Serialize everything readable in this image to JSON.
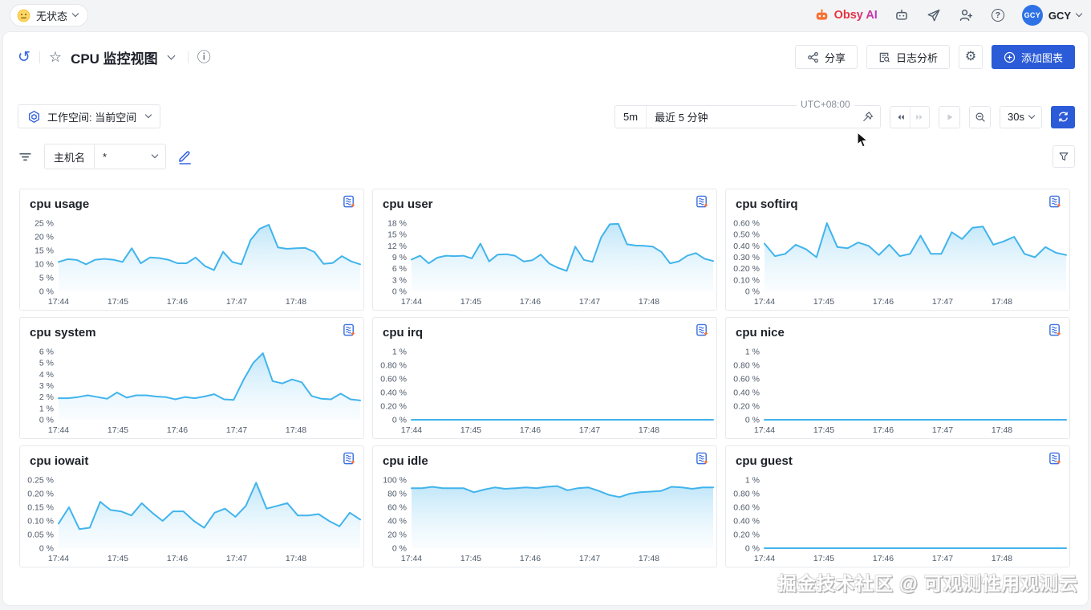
{
  "topbar": {
    "status_label": "无状态",
    "obsy_label": "Obsy AI",
    "avatar_text": "GCY",
    "username": "GCY"
  },
  "header": {
    "title": "CPU 监控视图",
    "share_label": "分享",
    "log_label": "日志分析",
    "add_chart_label": "添加图表",
    "workspace_label": "工作空间: 当前空间",
    "timezone": "UTC+08:00",
    "range_badge": "5m",
    "range_label": "最近 5 分钟",
    "interval_label": "30s"
  },
  "filter": {
    "field_label": "主机名",
    "field_value": "*"
  },
  "watermark": "掘金技术社区 @ 可观测性用观测云",
  "icons": {
    "back": "↺",
    "star": "☆",
    "info": "ⓘ",
    "gear": "⚙",
    "help": "?"
  },
  "colors": {
    "accent": "#2b5bd7",
    "line": "#41b4ec",
    "area_top": "#8ed2f4",
    "area_bottom": "#eaf7fd",
    "avatar_bg": "#2e72e5",
    "icon_gray": "#4e5969",
    "border": "#e5e6eb",
    "tick": "#4e5969"
  },
  "chart_data": [
    {
      "type": "area",
      "title": "cpu usage",
      "ylabel": "%",
      "legend_position": "none",
      "grid": false,
      "yticks": [
        "0 %",
        "5 %",
        "10 %",
        "15 %",
        "20 %",
        "25 %"
      ],
      "ymax": 25,
      "xticks": [
        "17:44",
        "17:45",
        "17:46",
        "17:47",
        "17:48"
      ],
      "values": [
        10.8,
        11.8,
        11.5,
        9.9,
        11.6,
        11.9,
        11.6,
        10.8,
        15.8,
        10.3,
        12.4,
        12.2,
        11.6,
        10.3,
        10.3,
        12.4,
        9.3,
        7.8,
        14.5,
        10.8,
        9.9,
        18.8,
        22.9,
        24.4,
        16.1,
        15.6,
        15.8,
        15.9,
        14.4,
        10.1,
        10.4,
        12.9,
        11.0,
        9.9
      ]
    },
    {
      "type": "area",
      "title": "cpu user",
      "ylabel": "%",
      "legend_position": "none",
      "grid": false,
      "yticks": [
        "0 %",
        "3 %",
        "6 %",
        "9 %",
        "12 %",
        "15 %",
        "18 %"
      ],
      "ymax": 18,
      "xticks": [
        "17:44",
        "17:45",
        "17:46",
        "17:47",
        "17:48"
      ],
      "values": [
        8.4,
        9.4,
        7.4,
        8.9,
        9.4,
        9.3,
        9.4,
        8.7,
        12.6,
        7.9,
        9.7,
        9.8,
        9.4,
        7.9,
        8.2,
        9.7,
        7.3,
        6.2,
        5.4,
        11.8,
        8.3,
        7.8,
        14.2,
        17.7,
        17.8,
        12.4,
        12.1,
        12.0,
        11.8,
        10.4,
        7.4,
        7.9,
        9.4,
        10.1,
        8.6,
        8.0
      ]
    },
    {
      "type": "area",
      "title": "cpu softirq",
      "ylabel": "%",
      "legend_position": "none",
      "grid": false,
      "yticks": [
        "0 %",
        "0.10 %",
        "0.20 %",
        "0.30 %",
        "0.40 %",
        "0.50 %",
        "0.60 %"
      ],
      "ymax": 0.6,
      "xticks": [
        "17:44",
        "17:45",
        "17:46",
        "17:47",
        "17:48"
      ],
      "values": [
        0.42,
        0.31,
        0.33,
        0.41,
        0.37,
        0.3,
        0.6,
        0.39,
        0.38,
        0.43,
        0.4,
        0.32,
        0.41,
        0.31,
        0.33,
        0.49,
        0.33,
        0.33,
        0.52,
        0.46,
        0.56,
        0.57,
        0.41,
        0.44,
        0.48,
        0.33,
        0.3,
        0.39,
        0.34,
        0.32
      ]
    },
    {
      "type": "area",
      "title": "cpu system",
      "ylabel": "%",
      "legend_position": "none",
      "grid": false,
      "yticks": [
        "0 %",
        "1 %",
        "2 %",
        "3 %",
        "4 %",
        "5 %",
        "6 %"
      ],
      "ymax": 6,
      "xticks": [
        "17:44",
        "17:45",
        "17:46",
        "17:47",
        "17:48"
      ],
      "values": [
        1.9,
        1.9,
        2.0,
        2.15,
        2.0,
        1.85,
        2.4,
        1.95,
        2.15,
        2.15,
        2.05,
        2.0,
        1.8,
        2.0,
        1.9,
        2.05,
        2.25,
        1.8,
        1.75,
        3.5,
        5.0,
        5.85,
        3.4,
        3.2,
        3.55,
        3.3,
        2.1,
        1.85,
        1.8,
        2.3,
        1.8,
        1.7
      ]
    },
    {
      "type": "area",
      "title": "cpu irq",
      "ylabel": "%",
      "legend_position": "none",
      "grid": false,
      "yticks": [
        "0 %",
        "0.20 %",
        "0.40 %",
        "0.60 %",
        "0.80 %",
        "1 %"
      ],
      "ymax": 1,
      "xticks": [
        "17:44",
        "17:45",
        "17:46",
        "17:47",
        "17:48"
      ],
      "values": [
        0,
        0,
        0,
        0,
        0,
        0
      ]
    },
    {
      "type": "area",
      "title": "cpu nice",
      "ylabel": "%",
      "legend_position": "none",
      "grid": false,
      "yticks": [
        "0 %",
        "0.20 %",
        "0.40 %",
        "0.60 %",
        "0.80 %",
        "1 %"
      ],
      "ymax": 1,
      "xticks": [
        "17:44",
        "17:45",
        "17:46",
        "17:47",
        "17:48"
      ],
      "values": [
        0,
        0,
        0,
        0,
        0,
        0
      ]
    },
    {
      "type": "area",
      "title": "cpu iowait",
      "ylabel": "%",
      "legend_position": "none",
      "grid": false,
      "yticks": [
        "0 %",
        "0.05 %",
        "0.10 %",
        "0.15 %",
        "0.20 %",
        "0.25 %"
      ],
      "ymax": 0.25,
      "xticks": [
        "17:44",
        "17:45",
        "17:46",
        "17:47",
        "17:48"
      ],
      "values": [
        0.09,
        0.15,
        0.07,
        0.075,
        0.17,
        0.14,
        0.135,
        0.12,
        0.165,
        0.13,
        0.1,
        0.135,
        0.135,
        0.1,
        0.075,
        0.13,
        0.145,
        0.115,
        0.155,
        0.24,
        0.145,
        0.155,
        0.165,
        0.12,
        0.12,
        0.125,
        0.1,
        0.08,
        0.13,
        0.105
      ]
    },
    {
      "type": "area",
      "title": "cpu idle",
      "ylabel": "%",
      "legend_position": "none",
      "grid": false,
      "yticks": [
        "0 %",
        "20 %",
        "40 %",
        "60 %",
        "80 %",
        "100 %"
      ],
      "ymax": 100,
      "xticks": [
        "17:44",
        "17:45",
        "17:46",
        "17:47",
        "17:48"
      ],
      "values": [
        88,
        88,
        90,
        88,
        88,
        88,
        82,
        86,
        89,
        87,
        88,
        89,
        88,
        90,
        91,
        85,
        88,
        89,
        84,
        78,
        75,
        80,
        82,
        83,
        84,
        90,
        89,
        87,
        89,
        89
      ]
    },
    {
      "type": "area",
      "title": "cpu guest",
      "ylabel": "%",
      "legend_position": "none",
      "grid": false,
      "yticks": [
        "0 %",
        "0.20 %",
        "0.40 %",
        "0.60 %",
        "0.80 %",
        "1 %"
      ],
      "ymax": 1,
      "xticks": [
        "17:44",
        "17:45",
        "17:46",
        "17:47",
        "17:48"
      ],
      "values": [
        0,
        0,
        0,
        0,
        0,
        0
      ]
    }
  ]
}
